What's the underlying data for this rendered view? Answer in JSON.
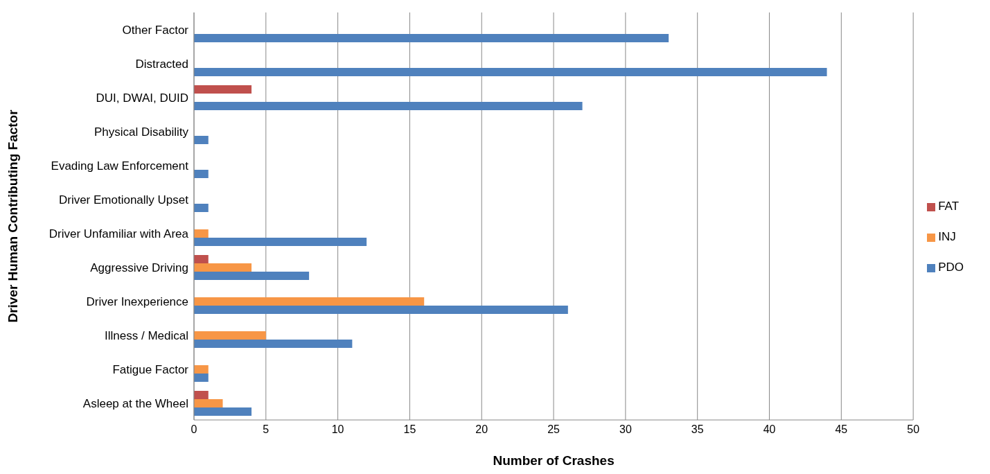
{
  "chart_data": {
    "type": "bar",
    "orientation": "horizontal",
    "xlabel": "Number of Crashes",
    "ylabel": "Driver Human Contributing Factor",
    "categories": [
      "Other Factor",
      "Distracted",
      "DUI, DWAI, DUID",
      "Physical Disability",
      "Evading Law Enforcement",
      "Driver Emotionally Upset",
      "Driver Unfamiliar with Area",
      "Aggressive Driving",
      "Driver Inexperience",
      "Illness / Medical",
      "Fatigue Factor",
      "Asleep at the Wheel"
    ],
    "series": [
      {
        "name": "FAT",
        "color": "#c0504d",
        "values": [
          null,
          null,
          4,
          null,
          null,
          null,
          null,
          1,
          null,
          null,
          null,
          1
        ]
      },
      {
        "name": "INJ",
        "color": "#f79646",
        "values": [
          null,
          null,
          null,
          null,
          null,
          null,
          1,
          4,
          16,
          5,
          1,
          2
        ]
      },
      {
        "name": "PDO",
        "color": "#4f81bd",
        "values": [
          33,
          44,
          27,
          1,
          1,
          1,
          12,
          8,
          26,
          11,
          1,
          4
        ]
      }
    ],
    "xlim": [
      0,
      50
    ],
    "xticks": [
      0,
      5,
      10,
      15,
      20,
      25,
      30,
      35,
      40,
      45,
      50
    ],
    "grid": "x",
    "legend": "right"
  }
}
